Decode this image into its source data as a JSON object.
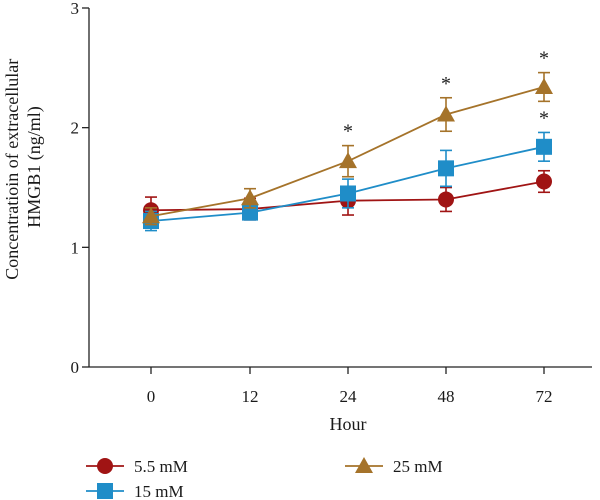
{
  "chart_data": {
    "type": "line",
    "categories": [
      "0",
      "12",
      "24",
      "48",
      "72"
    ],
    "xlabel": "Hour",
    "ylabel_lines": [
      "Concentratioin of extracellular",
      "HMGB1 (ng/ml)"
    ],
    "ylim": [
      0,
      3
    ],
    "yticks": [
      "0",
      "1",
      "2",
      "3"
    ],
    "grid": false,
    "legend_position": "bottom",
    "series": [
      {
        "name": "5.5 mM",
        "color": "#a01414",
        "marker": "circle",
        "values": [
          1.31,
          1.32,
          1.39,
          1.4,
          1.55
        ],
        "errors": [
          0.11,
          0.09,
          0.12,
          0.1,
          0.09
        ],
        "significant": [
          false,
          false,
          false,
          false,
          false
        ]
      },
      {
        "name": "15 mM",
        "color": "#1f8dc8",
        "marker": "square",
        "values": [
          1.22,
          1.29,
          1.45,
          1.66,
          1.84
        ],
        "errors": [
          0.08,
          0.06,
          0.12,
          0.15,
          0.12
        ],
        "significant": [
          false,
          false,
          false,
          false,
          true
        ]
      },
      {
        "name": "25 mM",
        "color": "#a5732a",
        "marker": "triangle",
        "values": [
          1.26,
          1.41,
          1.72,
          2.11,
          2.34
        ],
        "errors": [
          0.07,
          0.08,
          0.13,
          0.14,
          0.12
        ],
        "significant": [
          false,
          false,
          true,
          true,
          true
        ]
      }
    ],
    "annotation_symbol": "*"
  }
}
